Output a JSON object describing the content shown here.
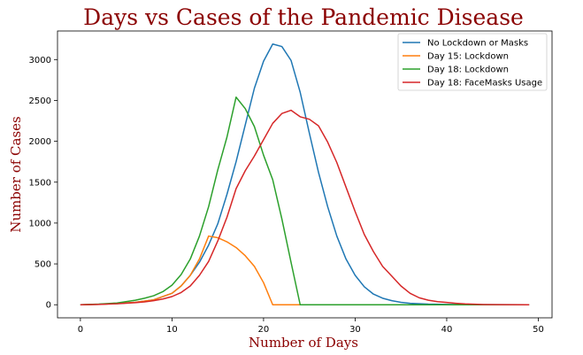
{
  "chart_data": {
    "type": "line",
    "title": "Days vs Cases of the Pandemic Disease",
    "xlabel": "Number of Days",
    "ylabel": "Number of Cases",
    "xlim": [
      -2.5,
      51.5
    ],
    "ylim": [
      -160,
      3350
    ],
    "x_ticks": [
      0,
      10,
      20,
      30,
      40,
      50
    ],
    "y_ticks": [
      0,
      500,
      1000,
      1500,
      2000,
      2500,
      3000
    ],
    "grid": false,
    "legend_position": "top-right",
    "series": [
      {
        "name": "No Lockdown or Masks",
        "color": "#1f77b4",
        "points": [
          [
            0,
            0
          ],
          [
            2,
            5
          ],
          [
            4,
            15
          ],
          [
            6,
            30
          ],
          [
            8,
            60
          ],
          [
            10,
            140
          ],
          [
            11,
            230
          ],
          [
            12,
            360
          ],
          [
            13,
            520
          ],
          [
            14,
            730
          ],
          [
            15,
            990
          ],
          [
            16,
            1350
          ],
          [
            17,
            1750
          ],
          [
            18,
            2200
          ],
          [
            19,
            2650
          ],
          [
            20,
            2980
          ],
          [
            21,
            3190
          ],
          [
            22,
            3160
          ],
          [
            23,
            2990
          ],
          [
            24,
            2600
          ],
          [
            25,
            2100
          ],
          [
            26,
            1620
          ],
          [
            27,
            1200
          ],
          [
            28,
            840
          ],
          [
            29,
            560
          ],
          [
            30,
            360
          ],
          [
            31,
            220
          ],
          [
            32,
            130
          ],
          [
            33,
            80
          ],
          [
            34,
            50
          ],
          [
            35,
            30
          ],
          [
            36,
            18
          ],
          [
            38,
            8
          ],
          [
            40,
            4
          ],
          [
            44,
            1
          ],
          [
            49,
            0
          ]
        ]
      },
      {
        "name": "Day 15: Lockdown",
        "color": "#ff7f0e",
        "points": [
          [
            0,
            0
          ],
          [
            2,
            5
          ],
          [
            4,
            15
          ],
          [
            6,
            30
          ],
          [
            8,
            60
          ],
          [
            10,
            140
          ],
          [
            11,
            230
          ],
          [
            12,
            360
          ],
          [
            13,
            560
          ],
          [
            14,
            840
          ],
          [
            15,
            820
          ],
          [
            16,
            770
          ],
          [
            17,
            700
          ],
          [
            18,
            600
          ],
          [
            19,
            470
          ],
          [
            20,
            270
          ],
          [
            21,
            0
          ],
          [
            49,
            0
          ]
        ]
      },
      {
        "name": "Day 18: Lockdown",
        "color": "#2ca02c",
        "points": [
          [
            0,
            0
          ],
          [
            2,
            8
          ],
          [
            4,
            22
          ],
          [
            6,
            55
          ],
          [
            7,
            80
          ],
          [
            8,
            110
          ],
          [
            9,
            160
          ],
          [
            10,
            240
          ],
          [
            11,
            370
          ],
          [
            12,
            560
          ],
          [
            13,
            840
          ],
          [
            14,
            1200
          ],
          [
            15,
            1650
          ],
          [
            16,
            2050
          ],
          [
            17,
            2540
          ],
          [
            18,
            2400
          ],
          [
            19,
            2180
          ],
          [
            20,
            1830
          ],
          [
            21,
            1530
          ],
          [
            22,
            1050
          ],
          [
            23,
            520
          ],
          [
            24,
            0
          ],
          [
            49,
            0
          ]
        ]
      },
      {
        "name": "Day 18: FaceMasks Usage",
        "color": "#d62728",
        "points": [
          [
            0,
            0
          ],
          [
            2,
            4
          ],
          [
            4,
            12
          ],
          [
            6,
            25
          ],
          [
            7,
            35
          ],
          [
            8,
            50
          ],
          [
            9,
            70
          ],
          [
            10,
            100
          ],
          [
            11,
            150
          ],
          [
            12,
            230
          ],
          [
            13,
            360
          ],
          [
            14,
            530
          ],
          [
            15,
            780
          ],
          [
            16,
            1070
          ],
          [
            17,
            1420
          ],
          [
            18,
            1640
          ],
          [
            19,
            1820
          ],
          [
            20,
            2020
          ],
          [
            21,
            2220
          ],
          [
            22,
            2340
          ],
          [
            23,
            2380
          ],
          [
            24,
            2300
          ],
          [
            25,
            2270
          ],
          [
            26,
            2190
          ],
          [
            27,
            1990
          ],
          [
            28,
            1740
          ],
          [
            29,
            1440
          ],
          [
            30,
            1140
          ],
          [
            31,
            860
          ],
          [
            32,
            650
          ],
          [
            33,
            470
          ],
          [
            34,
            350
          ],
          [
            35,
            230
          ],
          [
            36,
            140
          ],
          [
            37,
            85
          ],
          [
            38,
            55
          ],
          [
            39,
            38
          ],
          [
            40,
            28
          ],
          [
            41,
            18
          ],
          [
            42,
            10
          ],
          [
            43,
            6
          ],
          [
            44,
            3
          ],
          [
            46,
            1
          ],
          [
            49,
            0
          ]
        ]
      }
    ]
  }
}
